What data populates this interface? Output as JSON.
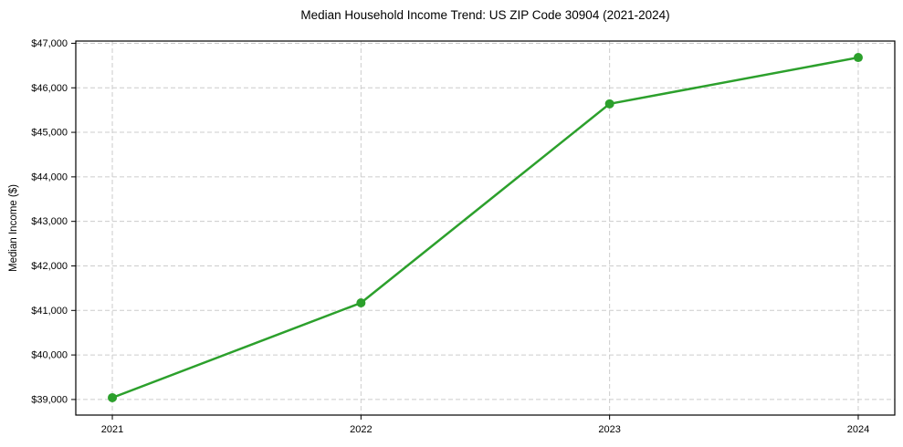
{
  "chart_data": {
    "type": "line",
    "title": "Median Household Income Trend: US ZIP Code 30904 (2021-2024)",
    "xlabel": "",
    "ylabel": "Median Income ($)",
    "x": [
      2021,
      2022,
      2023,
      2024
    ],
    "values": [
      39040,
      41170,
      45640,
      46680
    ],
    "xticks": [
      2021,
      2022,
      2023,
      2024
    ],
    "xtick_labels": [
      "2021",
      "2022",
      "2023",
      "2024"
    ],
    "yticks": [
      39000,
      40000,
      41000,
      42000,
      43000,
      44000,
      45000,
      46000,
      47000
    ],
    "ytick_labels": [
      "$39,000",
      "$40,000",
      "$41,000",
      "$42,000",
      "$43,000",
      "$44,000",
      "$45,000",
      "$46,000",
      "$47,000"
    ],
    "xlim": [
      2020.853,
      2024.147
    ],
    "ylim": [
      38650,
      47050
    ],
    "grid": true,
    "grid_style": "dashed",
    "legend": false,
    "colors": {
      "line": "#2ca02c",
      "marker": "#2ca02c",
      "grid": "#cccccc",
      "spine": "#000000",
      "background": "#ffffff",
      "text": "#000000"
    },
    "marker": "circle",
    "marker_radius": 5,
    "line_width": 2.5
  }
}
